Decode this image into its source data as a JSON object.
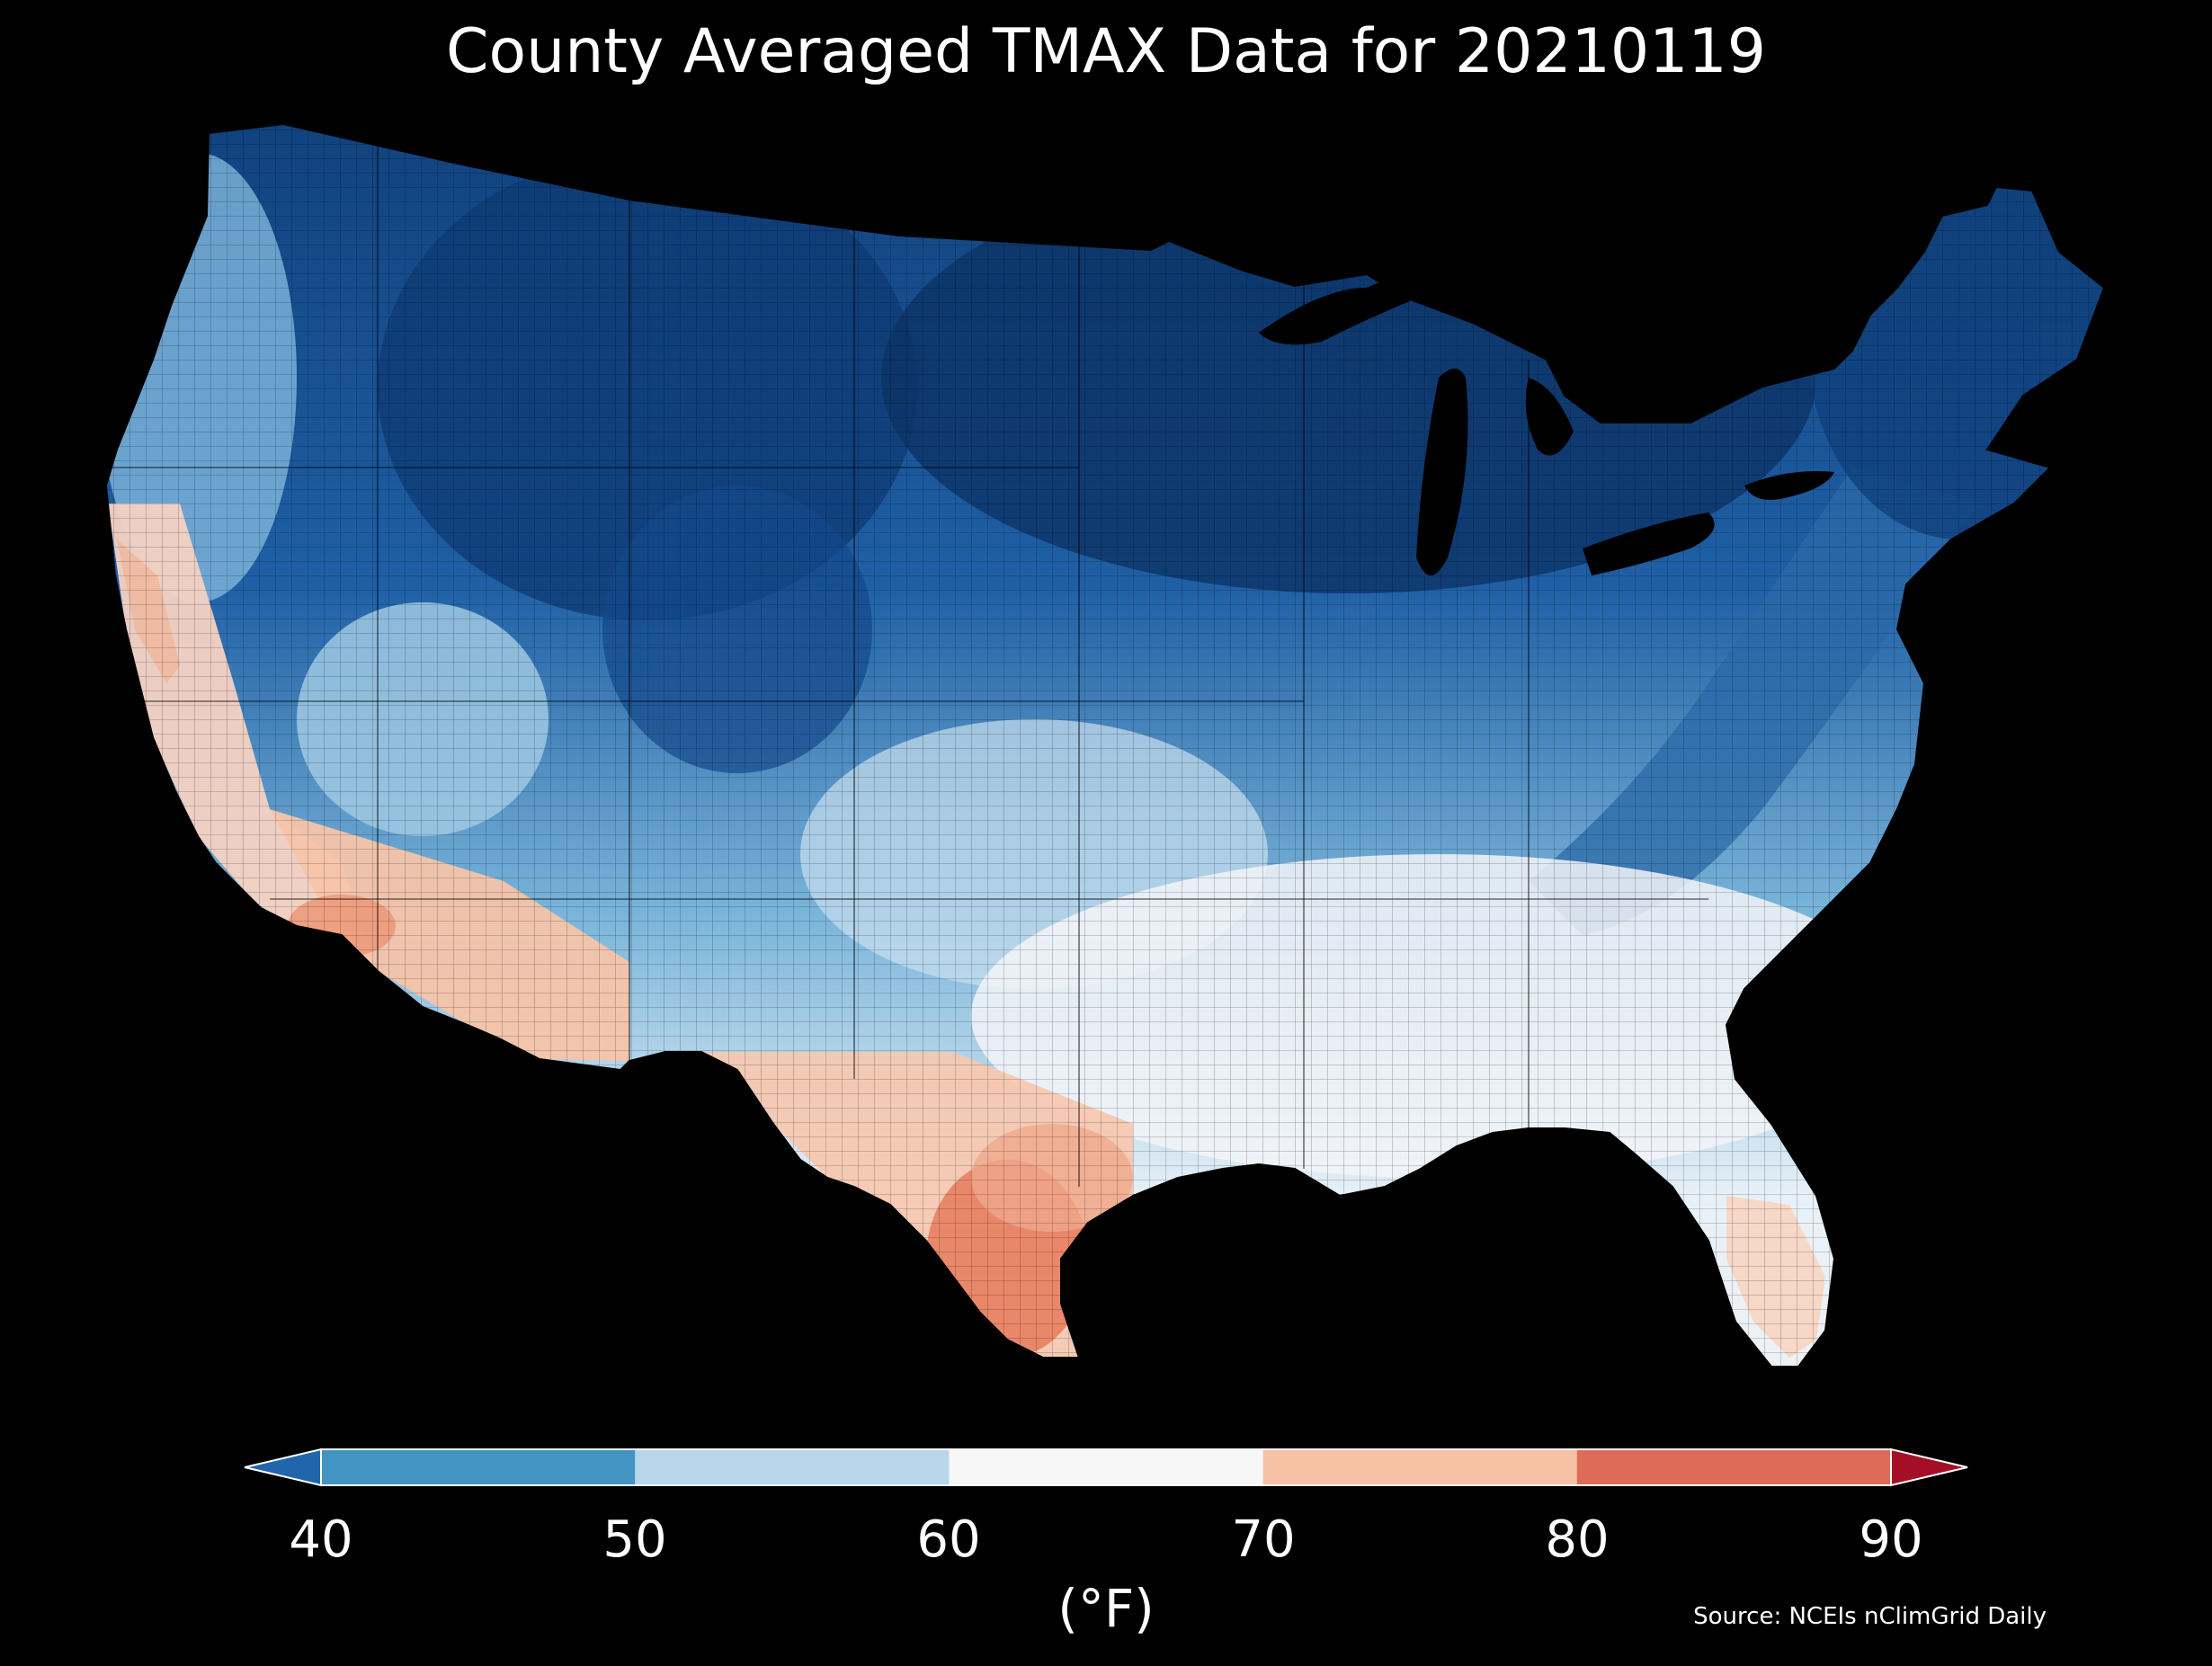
{
  "title": "County Averaged TMAX Data for 20210119",
  "legend": {
    "unit": "(°F)",
    "ticks": [
      "40",
      "50",
      "60",
      "70",
      "80",
      "90"
    ],
    "bins": [
      {
        "range": "<40",
        "color": "#2166ac"
      },
      {
        "range": "40-50",
        "color": "#4393c3"
      },
      {
        "range": "50-60",
        "color": "#b7d6ea"
      },
      {
        "range": "60-70",
        "color": "#f7f7f7"
      },
      {
        "range": "70-80",
        "color": "#f8c1a5"
      },
      {
        "range": "80-90",
        "color": "#dd6b57"
      },
      {
        "range": ">90",
        "color": "#a50f26"
      }
    ],
    "extend": "both"
  },
  "source": "Source: NCEIs nClimGrid Daily",
  "map": {
    "region": "Contiguous United States",
    "variable": "TMAX",
    "date": "20210119",
    "pattern": [
      {
        "area": "Northern Plains / Upper Midwest / Great Lakes",
        "bin": "<40"
      },
      {
        "area": "Interior Northwest / Rockies",
        "bin": "<40"
      },
      {
        "area": "Appalachians / Northeast",
        "bin": "<40"
      },
      {
        "area": "Pacific Northwest coast / Great Basin",
        "bin": "40-50"
      },
      {
        "area": "Central Plains / Ohio Valley",
        "bin": "50-60"
      },
      {
        "area": "Southeast / Lower Mississippi",
        "bin": "60-70"
      },
      {
        "area": "California / Southwest",
        "bin": "70-80"
      },
      {
        "area": "South Texas",
        "bin": "80-90"
      },
      {
        "area": "Florida peninsula",
        "bin": "70-80"
      }
    ]
  }
}
